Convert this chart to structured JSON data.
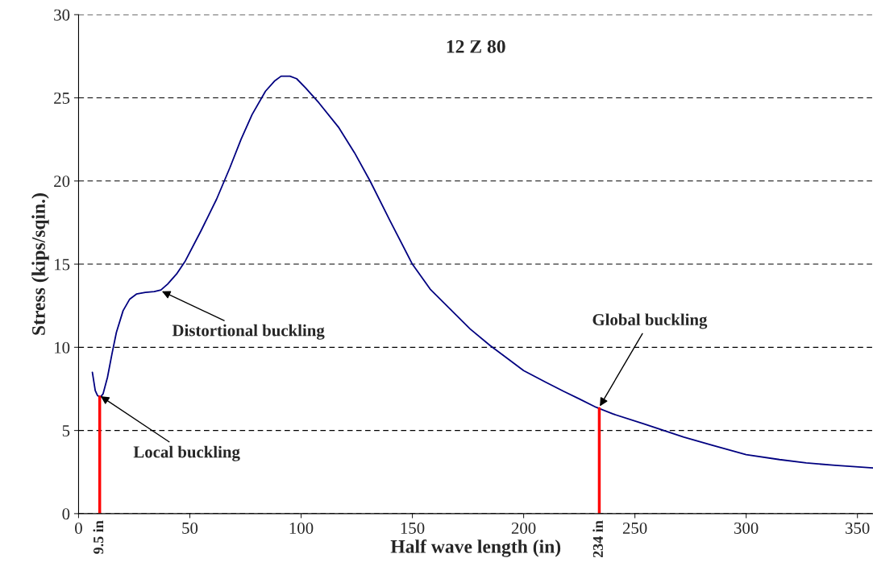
{
  "chart_data": {
    "type": "line",
    "title": "12 Z 80",
    "xlabel": "Half wave length (in)",
    "ylabel": "Stress (kips/sqin.)",
    "series": [
      {
        "color": "#000080",
        "x": [
          6.2,
          7.5,
          8.5,
          9.8,
          11,
          13,
          15,
          17,
          20,
          23,
          26,
          30,
          34,
          37,
          40,
          44,
          48,
          55,
          62,
          68,
          73,
          78,
          84,
          88,
          91,
          95,
          98,
          102,
          108,
          117,
          124,
          131,
          140,
          150,
          158,
          167,
          176,
          185,
          193,
          200,
          210,
          218,
          225,
          232.5,
          240,
          254,
          263,
          272,
          285,
          300,
          315,
          327,
          340,
          357
        ],
        "values": [
          8.5,
          7.4,
          7.1,
          7.0,
          7.2,
          8.2,
          9.6,
          10.9,
          12.2,
          12.9,
          13.2,
          13.3,
          13.35,
          13.45,
          13.8,
          14.4,
          15.2,
          17.0,
          18.9,
          20.8,
          22.5,
          24.0,
          25.4,
          26.0,
          26.3,
          26.3,
          26.15,
          25.6,
          24.7,
          23.2,
          21.7,
          20.0,
          17.6,
          15.0,
          13.5,
          12.3,
          11.1,
          10.1,
          9.3,
          8.6,
          7.9,
          7.35,
          6.9,
          6.4,
          6.0,
          5.4,
          5.0,
          4.6,
          4.1,
          3.55,
          3.25,
          3.05,
          2.9,
          2.75
        ]
      }
    ],
    "xlim": [
      0,
      357
    ],
    "ylim": [
      0,
      30
    ],
    "xticks": [
      0,
      50,
      100,
      150,
      200,
      250,
      300,
      350
    ],
    "yticks": [
      0,
      5,
      10,
      15,
      20,
      25,
      30
    ],
    "grid": "y",
    "line_style": "solid",
    "marker": "none",
    "ref_lines": [
      {
        "axis": "x",
        "value": 9.5,
        "label": "9.5 in",
        "color": "#ff0000"
      },
      {
        "axis": "x",
        "value": 234,
        "label": "234 in",
        "color": "#ff0000"
      }
    ],
    "annotations": [
      {
        "text": "Local buckling",
        "x": 9.5,
        "y": 7.1
      },
      {
        "text": "Distortional buckling",
        "x": 37,
        "y": 13.4
      },
      {
        "text": "Global buckling",
        "x": 234,
        "y": 6.4
      }
    ]
  }
}
